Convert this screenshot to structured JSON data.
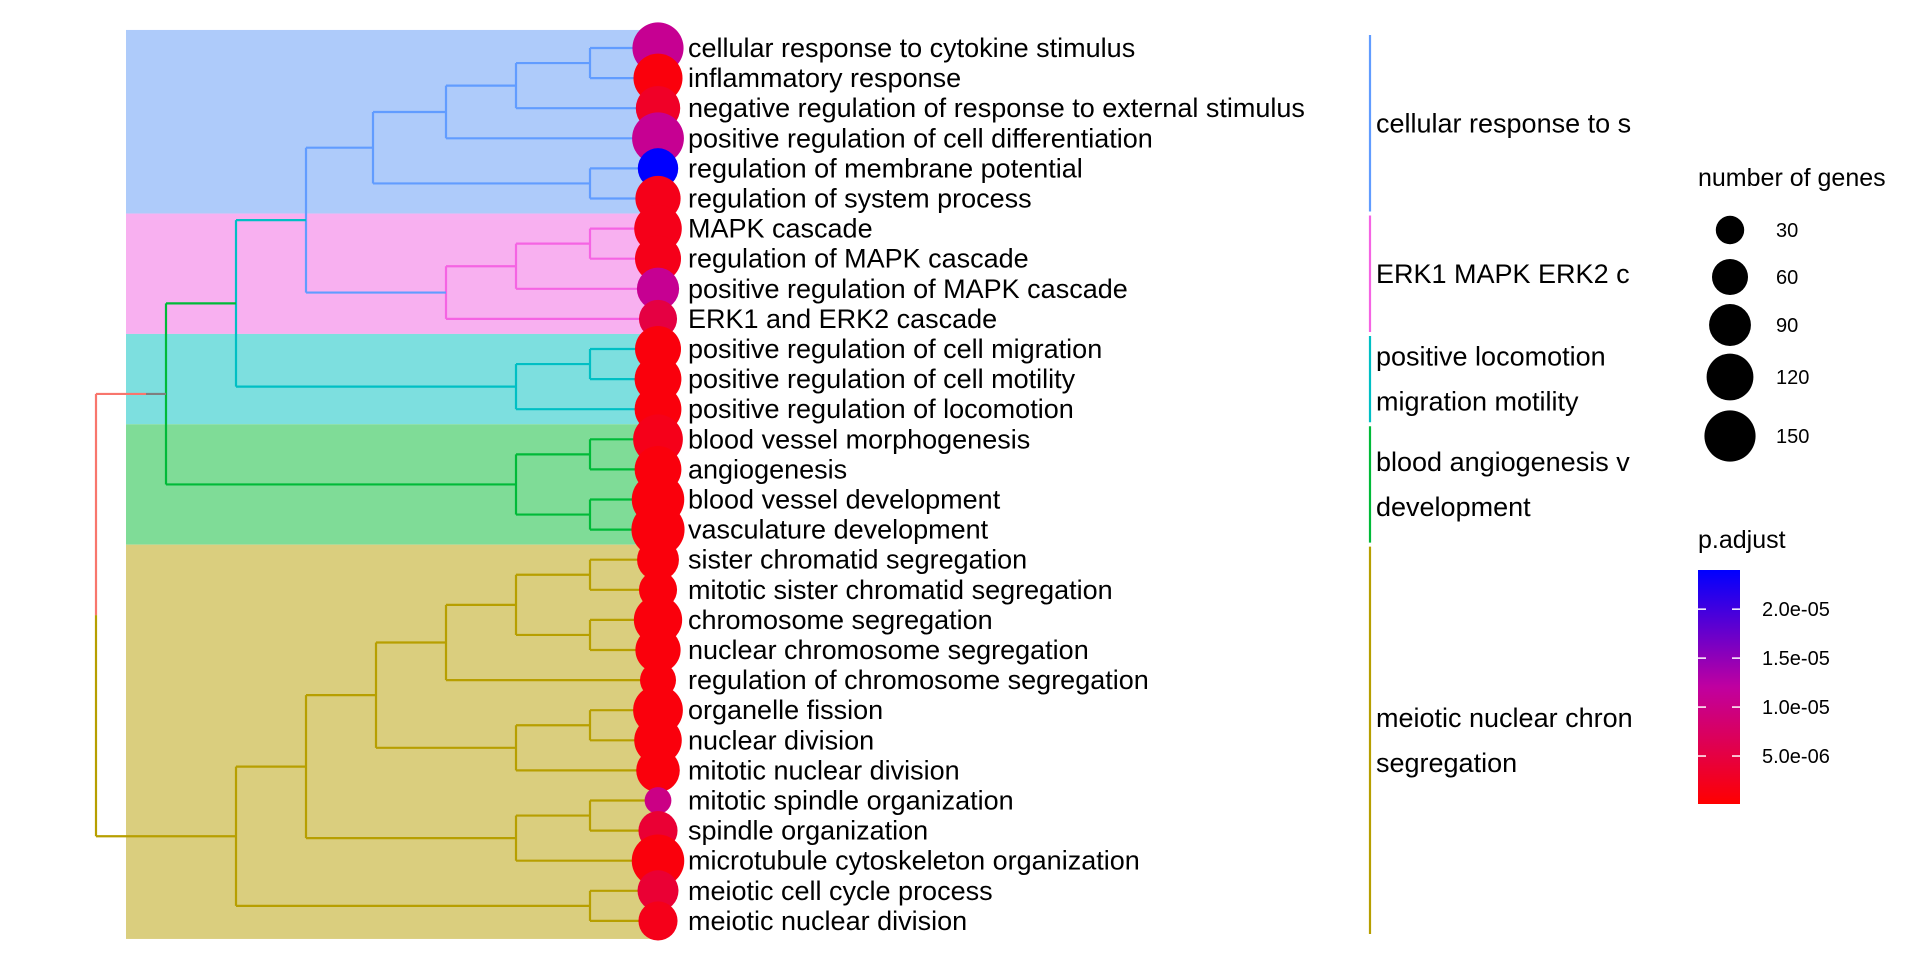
{
  "chart_data": {
    "type": "tree",
    "terms": [
      {
        "label": "cellular response to cytokine stimulus",
        "count": 150,
        "p_adjust": 1.1e-05,
        "cluster": 0
      },
      {
        "label": "inflammatory response",
        "count": 135,
        "p_adjust": 1e-06,
        "cluster": 0
      },
      {
        "label": "negative regulation of response to external stimulus",
        "count": 105,
        "p_adjust": 3e-06,
        "cluster": 0
      },
      {
        "label": "positive regulation of cell differentiation",
        "count": 155,
        "p_adjust": 1.1e-05,
        "cluster": 0
      },
      {
        "label": "regulation of membrane potential",
        "count": 82,
        "p_adjust": 2.4e-05,
        "cluster": 0
      },
      {
        "label": "regulation of system process",
        "count": 110,
        "p_adjust": 2e-06,
        "cluster": 0
      },
      {
        "label": "MAPK cascade",
        "count": 125,
        "p_adjust": 2e-06,
        "cluster": 1
      },
      {
        "label": "regulation of MAPK cascade",
        "count": 115,
        "p_adjust": 2e-06,
        "cluster": 1
      },
      {
        "label": "positive regulation of MAPK cascade",
        "count": 92,
        "p_adjust": 1.1e-05,
        "cluster": 1
      },
      {
        "label": "ERK1 and ERK2 cascade",
        "count": 70,
        "p_adjust": 5e-06,
        "cluster": 1
      },
      {
        "label": "positive regulation of cell migration",
        "count": 115,
        "p_adjust": 1e-06,
        "cluster": 2
      },
      {
        "label": "positive regulation of cell motility",
        "count": 120,
        "p_adjust": 1e-06,
        "cluster": 2
      },
      {
        "label": "positive regulation of locomotion",
        "count": 120,
        "p_adjust": 1e-06,
        "cluster": 2
      },
      {
        "label": "blood vessel morphogenesis",
        "count": 140,
        "p_adjust": 2e-06,
        "cluster": 3
      },
      {
        "label": "angiogenesis",
        "count": 120,
        "p_adjust": 1e-06,
        "cluster": 3
      },
      {
        "label": "blood vessel development",
        "count": 160,
        "p_adjust": 1e-06,
        "cluster": 3
      },
      {
        "label": "vasculature development",
        "count": 165,
        "p_adjust": 1e-06,
        "cluster": 3
      },
      {
        "label": "sister chromatid segregation",
        "count": 90,
        "p_adjust": 1e-06,
        "cluster": 4
      },
      {
        "label": "mitotic sister chromatid segregation",
        "count": 70,
        "p_adjust": 1e-06,
        "cluster": 4
      },
      {
        "label": "chromosome segregation",
        "count": 130,
        "p_adjust": 1e-06,
        "cluster": 4
      },
      {
        "label": "nuclear chromosome segregation",
        "count": 110,
        "p_adjust": 1e-06,
        "cluster": 4
      },
      {
        "label": "regulation of chromosome segregation",
        "count": 60,
        "p_adjust": 1e-06,
        "cluster": 4
      },
      {
        "label": "organelle fission",
        "count": 140,
        "p_adjust": 1e-06,
        "cluster": 4
      },
      {
        "label": "nuclear division",
        "count": 125,
        "p_adjust": 1e-06,
        "cluster": 4
      },
      {
        "label": "mitotic nuclear division",
        "count": 100,
        "p_adjust": 1e-06,
        "cluster": 4
      },
      {
        "label": "mitotic spindle organization",
        "count": 25,
        "p_adjust": 1e-05,
        "cluster": 4
      },
      {
        "label": "spindle organization",
        "count": 75,
        "p_adjust": 4e-06,
        "cluster": 4
      },
      {
        "label": "microtubule cytoskeleton organization",
        "count": 160,
        "p_adjust": 1e-06,
        "cluster": 4
      },
      {
        "label": "meiotic cell cycle process",
        "count": 85,
        "p_adjust": 4e-06,
        "cluster": 4
      },
      {
        "label": "meiotic nuclear division",
        "count": 75,
        "p_adjust": 2e-06,
        "cluster": 4
      }
    ],
    "clusters": [
      {
        "lines": [
          "cellular response to s"
        ],
        "color": "#619CFF",
        "bg": "#AECBFA"
      },
      {
        "lines": [
          "ERK1 MAPK ERK2 c"
        ],
        "color": "#F564E3",
        "bg": "#F8B0F0"
      },
      {
        "lines": [
          "positive locomotion",
          "migration motility"
        ],
        "color": "#00BFC4",
        "bg": "#7DDFDF"
      },
      {
        "lines": [
          "blood angiogenesis v",
          "development"
        ],
        "color": "#00BA38",
        "bg": "#7FDC97"
      },
      {
        "lines": [
          "meiotic nuclear chron",
          "segregation"
        ],
        "color": "#B79F00",
        "bg": "#DACE7E"
      }
    ],
    "root_colors": {
      "upper": "#F8766D",
      "lower": "#B79F00",
      "mid": "#7f7f7f"
    },
    "legend": {
      "size": {
        "title": "number of genes",
        "values": [
          30,
          60,
          90,
          120,
          150
        ]
      },
      "color": {
        "title": "p.adjust",
        "min": 1e-07,
        "max": 2.4e-05,
        "ticks": [
          {
            "value": 5e-06,
            "label": "5.0e-06"
          },
          {
            "value": 1e-05,
            "label": "1.0e-05"
          },
          {
            "value": 1.5e-05,
            "label": "1.5e-05"
          },
          {
            "value": 2e-05,
            "label": "2.0e-05"
          }
        ],
        "low_color": "#FF0000",
        "high_color": "#0000FF"
      }
    }
  }
}
